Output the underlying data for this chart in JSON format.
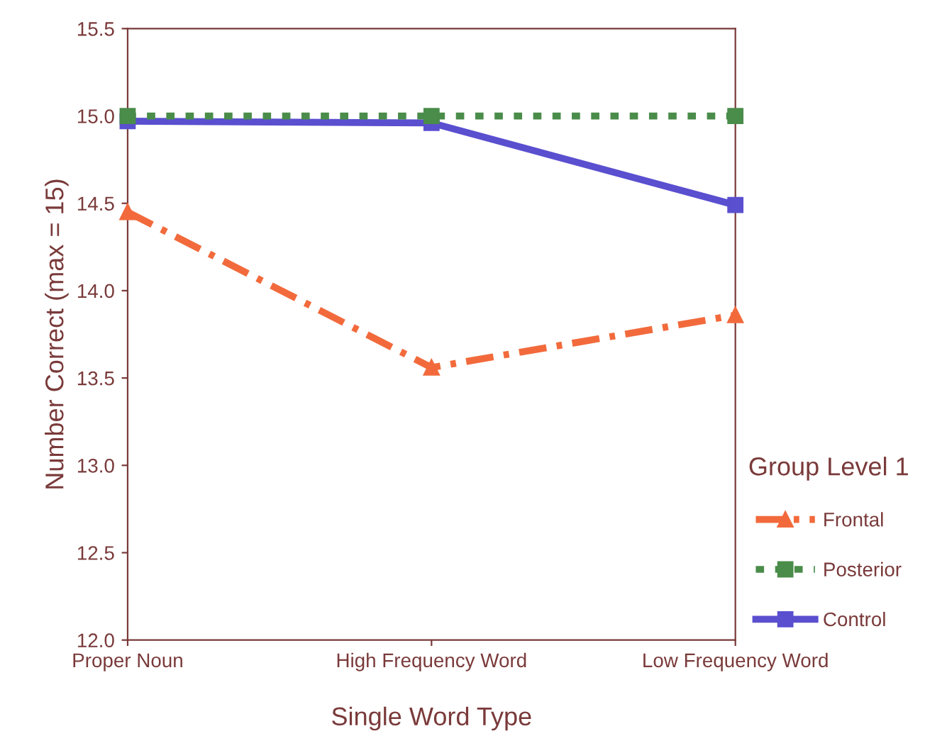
{
  "chart_data": {
    "type": "line",
    "xlabel": "Single Word Type",
    "ylabel": "Number Correct (max = 15)",
    "legend_title": "Group Level 1",
    "categories": [
      "Proper Noun",
      "High Frequency Word",
      "Low Frequency Word"
    ],
    "series": [
      {
        "name": "Frontal",
        "color": "#f26a3c",
        "values": [
          14.45,
          13.56,
          13.86
        ],
        "line_style": "dashdot",
        "marker": "triangle"
      },
      {
        "name": "Posterior",
        "color": "#4a8c4a",
        "values": [
          15.0,
          15.0,
          15.0
        ],
        "line_style": "dotted",
        "marker": "square"
      },
      {
        "name": "Control",
        "color": "#5a4fcf",
        "values": [
          14.97,
          14.96,
          14.49
        ],
        "line_style": "solid",
        "marker": "square"
      }
    ],
    "ylim": [
      12.0,
      15.5
    ],
    "yticks": [
      {
        "value": 12.0,
        "label": "12.0"
      },
      {
        "value": 12.5,
        "label": "12.5"
      },
      {
        "value": 13.0,
        "label": "13.0"
      },
      {
        "value": 13.5,
        "label": "13.5"
      },
      {
        "value": 14.0,
        "label": "14.0"
      },
      {
        "value": 14.5,
        "label": "14.5"
      },
      {
        "value": 15.0,
        "label": "15.0"
      },
      {
        "value": 15.5,
        "label": "15.5"
      }
    ],
    "grid": false,
    "legend": "bottom right"
  }
}
